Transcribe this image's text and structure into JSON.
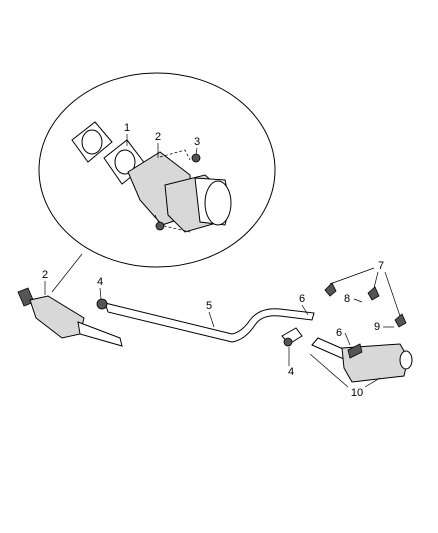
{
  "callouts": [
    {
      "label": "1"
    },
    {
      "label": "2"
    },
    {
      "label": "3"
    },
    {
      "label": "2"
    },
    {
      "label": "4"
    },
    {
      "label": "5"
    },
    {
      "label": "6"
    },
    {
      "label": "7"
    },
    {
      "label": "8"
    },
    {
      "label": "9"
    },
    {
      "label": "6"
    },
    {
      "label": "4"
    },
    {
      "label": "10"
    }
  ]
}
